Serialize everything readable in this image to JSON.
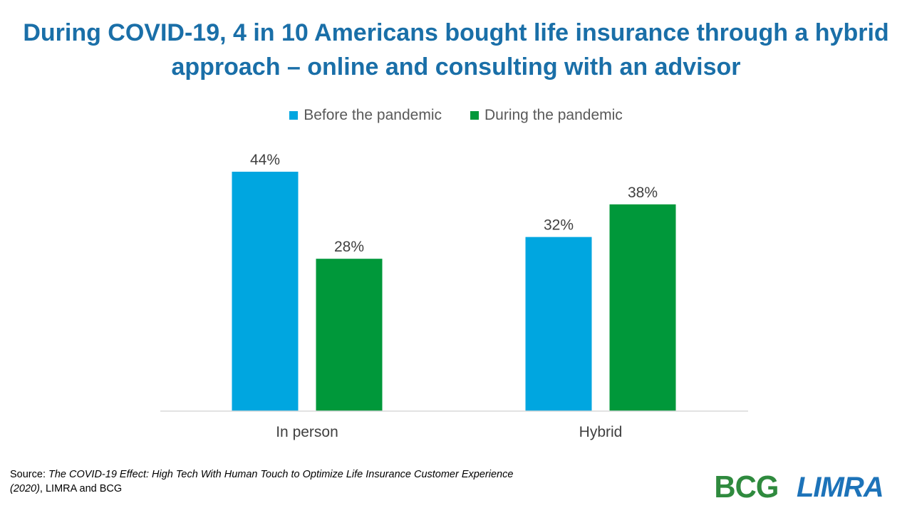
{
  "title": "During COVID-19, 4 in 10 Americans bought life insurance through a hybrid approach – online and consulting with an advisor",
  "source": {
    "prefix": "Source: ",
    "citation": "The COVID-19 Effect: High Tech With Human Touch to Optimize Life Insurance Customer Experience (2020)",
    "suffix": ", LIMRA and BCG"
  },
  "logos": {
    "bcg": "BCG",
    "limra": "LIMRA"
  },
  "colors": {
    "before": "#00a6e0",
    "during": "#00983a",
    "title": "#1a6fa8"
  },
  "chart_data": {
    "type": "bar",
    "categories": [
      "In person",
      "Hybrid"
    ],
    "series": [
      {
        "name": "Before the pandemic",
        "values": [
          44,
          32
        ],
        "labels": [
          "44%",
          "32%"
        ]
      },
      {
        "name": "During the pandemic",
        "values": [
          28,
          38
        ],
        "labels": [
          "28%",
          "38%"
        ]
      }
    ],
    "ylim": [
      0,
      44
    ],
    "legend": "top"
  }
}
